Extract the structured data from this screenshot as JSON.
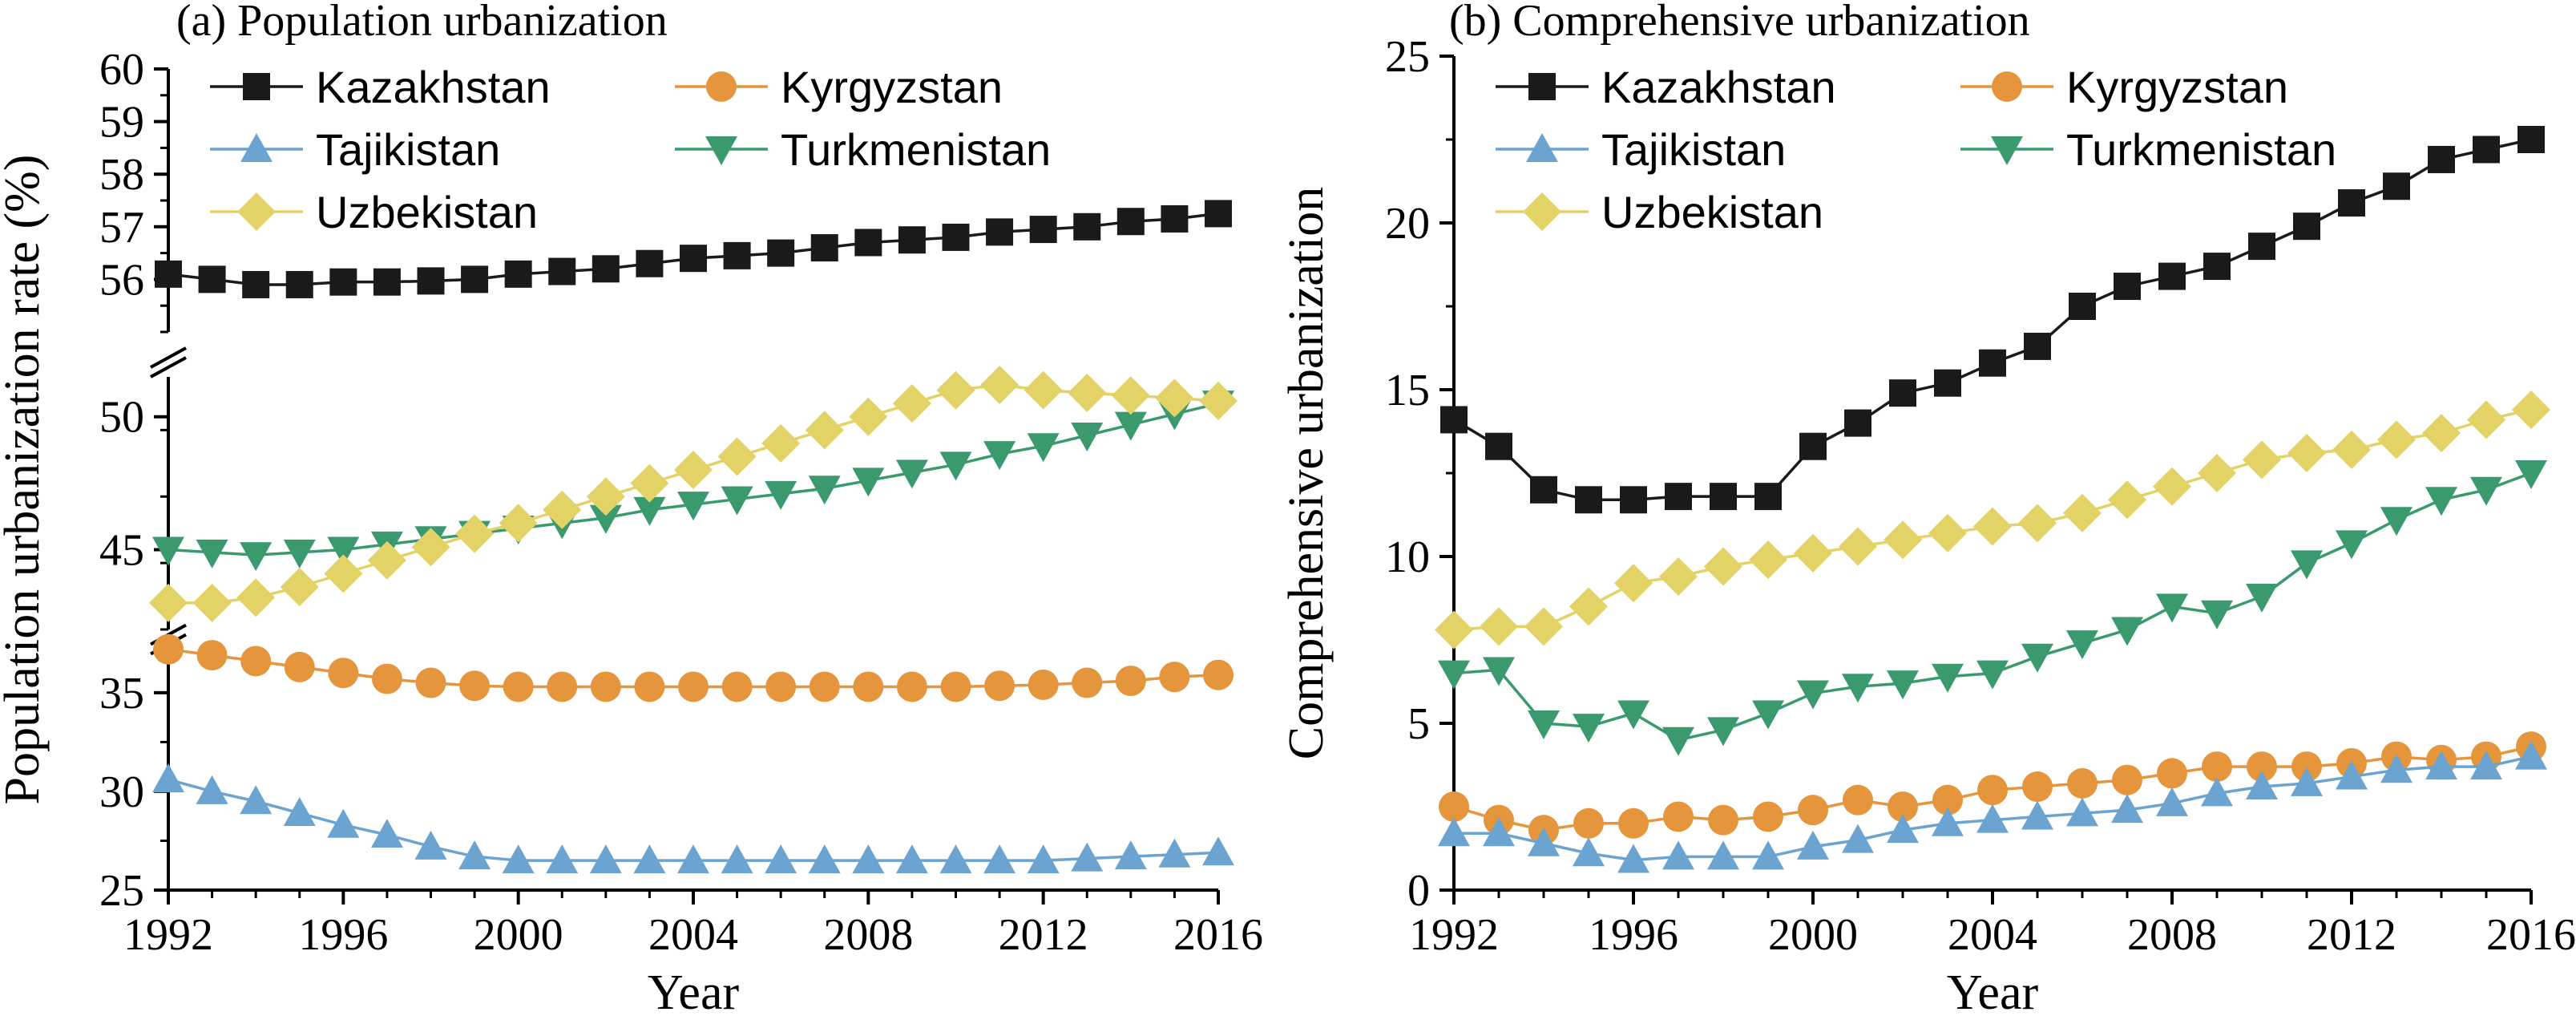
{
  "chart_data": [
    {
      "type": "line",
      "title": "(a) Population urbanization",
      "xlabel": "Year",
      "ylabel": "Population urbanization rate (%)",
      "x": [
        1992,
        1993,
        1994,
        1995,
        1996,
        1997,
        1998,
        1999,
        2000,
        2001,
        2002,
        2003,
        2004,
        2005,
        2006,
        2007,
        2008,
        2009,
        2010,
        2011,
        2012,
        2013,
        2014,
        2015,
        2016
      ],
      "xticks": [
        1992,
        1996,
        2000,
        2004,
        2008,
        2012,
        2016
      ],
      "broken_axis": true,
      "y_segments": [
        {
          "ylim": [
            25,
            38
          ],
          "ticks": [
            25,
            30,
            35
          ]
        },
        {
          "ylim": [
            42,
            51.5
          ],
          "ticks": [
            45,
            50
          ]
        },
        {
          "ylim": [
            55,
            60
          ],
          "ticks": [
            56,
            57,
            58,
            59,
            60
          ]
        }
      ],
      "legend_position": "top",
      "series": [
        {
          "name": "Kazakhstan",
          "color": "#1a1a1a",
          "marker": "square",
          "values": [
            56.1,
            56.0,
            55.9,
            55.9,
            55.95,
            55.95,
            55.97,
            56.0,
            56.1,
            56.15,
            56.2,
            56.3,
            56.4,
            56.45,
            56.5,
            56.6,
            56.7,
            56.75,
            56.8,
            56.9,
            56.95,
            57.0,
            57.1,
            57.15,
            57.25
          ]
        },
        {
          "name": "Kyrgyzstan",
          "color": "#E5963C",
          "marker": "circle",
          "values": [
            37.2,
            36.9,
            36.6,
            36.3,
            36.0,
            35.7,
            35.5,
            35.35,
            35.3,
            35.3,
            35.3,
            35.3,
            35.3,
            35.3,
            35.3,
            35.3,
            35.3,
            35.3,
            35.3,
            35.35,
            35.4,
            35.5,
            35.6,
            35.8,
            35.9
          ]
        },
        {
          "name": "Tajikistan",
          "color": "#6BA3D1",
          "marker": "triangle-up",
          "values": [
            30.6,
            30.0,
            29.5,
            28.9,
            28.3,
            27.8,
            27.2,
            26.7,
            26.5,
            26.5,
            26.5,
            26.5,
            26.5,
            26.5,
            26.5,
            26.5,
            26.5,
            26.5,
            26.5,
            26.5,
            26.5,
            26.6,
            26.7,
            26.8,
            26.9
          ]
        },
        {
          "name": "Turkmenistan",
          "color": "#3A9A6E",
          "marker": "triangle-down",
          "values": [
            45.0,
            44.9,
            44.8,
            44.9,
            45.0,
            45.2,
            45.4,
            45.6,
            45.8,
            46.0,
            46.2,
            46.5,
            46.7,
            46.9,
            47.1,
            47.3,
            47.6,
            47.9,
            48.2,
            48.6,
            48.9,
            49.3,
            49.7,
            50.1,
            50.5
          ]
        },
        {
          "name": "Uzbekistan",
          "color": "#E3D266",
          "marker": "diamond",
          "values": [
            43.0,
            43.0,
            43.2,
            43.6,
            44.1,
            44.6,
            45.1,
            45.6,
            46.0,
            46.5,
            47.0,
            47.5,
            48.0,
            48.5,
            49.0,
            49.5,
            50.0,
            50.5,
            51.0,
            51.2,
            51.0,
            50.9,
            50.8,
            50.7,
            50.6
          ]
        }
      ]
    },
    {
      "type": "line",
      "title": "(b) Comprehensive urbanization",
      "xlabel": "Year",
      "ylabel": "Comprehensive urbanization",
      "x": [
        1992,
        1993,
        1994,
        1995,
        1996,
        1997,
        1998,
        1999,
        2000,
        2001,
        2002,
        2003,
        2004,
        2005,
        2006,
        2007,
        2008,
        2009,
        2010,
        2011,
        2012,
        2013,
        2014,
        2015,
        2016
      ],
      "xticks": [
        1992,
        1996,
        2000,
        2004,
        2008,
        2012,
        2016
      ],
      "ylim": [
        0,
        25
      ],
      "yticks": [
        0,
        5,
        10,
        15,
        20,
        25
      ],
      "legend_position": "top",
      "series": [
        {
          "name": "Kazakhstan",
          "color": "#1a1a1a",
          "marker": "square",
          "values": [
            14.1,
            13.3,
            12.0,
            11.7,
            11.7,
            11.8,
            11.8,
            11.8,
            13.3,
            14.0,
            14.9,
            15.2,
            15.8,
            16.3,
            17.5,
            18.1,
            18.4,
            18.7,
            19.3,
            19.9,
            20.6,
            21.1,
            21.9,
            22.2,
            22.5
          ]
        },
        {
          "name": "Kyrgyzstan",
          "color": "#E5963C",
          "marker": "circle",
          "values": [
            2.5,
            2.1,
            1.8,
            2.0,
            2.0,
            2.2,
            2.1,
            2.2,
            2.4,
            2.7,
            2.5,
            2.7,
            3.0,
            3.1,
            3.2,
            3.3,
            3.5,
            3.7,
            3.7,
            3.7,
            3.8,
            4.0,
            3.9,
            4.0,
            4.3
          ]
        },
        {
          "name": "Tajikistan",
          "color": "#6BA3D1",
          "marker": "triangle-up",
          "values": [
            1.7,
            1.7,
            1.4,
            1.1,
            0.9,
            1.0,
            1.0,
            1.0,
            1.3,
            1.5,
            1.8,
            2.0,
            2.1,
            2.2,
            2.3,
            2.4,
            2.6,
            2.9,
            3.1,
            3.2,
            3.4,
            3.6,
            3.7,
            3.7,
            4.0
          ]
        },
        {
          "name": "Turkmenistan",
          "color": "#3A9A6E",
          "marker": "triangle-down",
          "values": [
            6.5,
            6.6,
            5.0,
            4.9,
            5.3,
            4.5,
            4.8,
            5.3,
            5.9,
            6.1,
            6.2,
            6.4,
            6.5,
            7.0,
            7.4,
            7.8,
            8.5,
            8.3,
            8.8,
            9.8,
            10.4,
            11.1,
            11.7,
            12.0,
            12.5
          ]
        },
        {
          "name": "Uzbekistan",
          "color": "#E3D266",
          "marker": "diamond",
          "values": [
            7.8,
            7.9,
            7.9,
            8.5,
            9.2,
            9.4,
            9.7,
            9.9,
            10.1,
            10.3,
            10.5,
            10.7,
            10.9,
            11.0,
            11.3,
            11.7,
            12.1,
            12.5,
            12.9,
            13.1,
            13.2,
            13.5,
            13.7,
            14.1,
            14.4
          ]
        }
      ]
    }
  ]
}
